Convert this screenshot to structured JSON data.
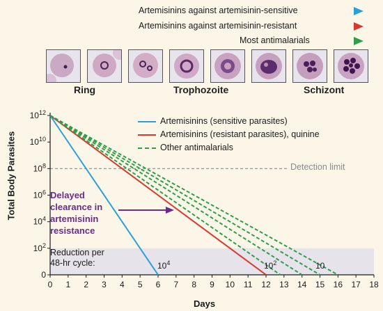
{
  "top_arrows": [
    {
      "label": "Artemisinins against artemisinin-sensitive",
      "color": "#2b9fd8"
    },
    {
      "label": "Artemisinins against artemisinin-resistant",
      "color": "#d63a2f"
    },
    {
      "label": "Most antimalarials",
      "color": "#2e9e48"
    }
  ],
  "stage_labels": [
    "Ring",
    "Trophozoite",
    "Schizont"
  ],
  "chart_data": {
    "type": "line",
    "xlabel": "Days",
    "ylabel": "Total Body Parasites",
    "xlim": [
      0,
      18
    ],
    "x_ticks": [
      0,
      1,
      2,
      3,
      4,
      5,
      6,
      7,
      8,
      9,
      10,
      11,
      12,
      13,
      14,
      15,
      16,
      17,
      18
    ],
    "y_scale": "log",
    "y_ticks": [
      "0",
      "10^2",
      "10^4",
      "10^6",
      "10^8",
      "10^10",
      "10^12"
    ],
    "series": [
      {
        "name": "Artemisinins (sensitive parasites)",
        "color": "#2b9fd8",
        "style": "solid",
        "x": [
          0,
          6
        ],
        "y": [
          1000000000000.0,
          1
        ]
      },
      {
        "name": "Artemisinins (resistant parasites), quinine",
        "color": "#d63a2f",
        "style": "solid",
        "x": [
          0,
          12
        ],
        "y": [
          1000000000000.0,
          1
        ]
      },
      {
        "name": "Other antimalarials",
        "color": "#2e9e48",
        "style": "dashed",
        "x": [
          0,
          12.8
        ],
        "y": [
          1000000000000.0,
          1
        ]
      },
      {
        "name": "",
        "color": "#2e9e48",
        "style": "dashed",
        "x": [
          0,
          14
        ],
        "y": [
          1000000000000.0,
          1
        ]
      },
      {
        "name": "",
        "color": "#2e9e48",
        "style": "dashed",
        "x": [
          0,
          15
        ],
        "y": [
          1000000000000.0,
          1
        ]
      },
      {
        "name": "",
        "color": "#2e9e48",
        "style": "dashed",
        "x": [
          0,
          16
        ],
        "y": [
          1000000000000.0,
          1
        ]
      }
    ],
    "detection_limit": {
      "label": "Detection limit",
      "y": 100000000.0
    },
    "annotations": {
      "delayed": [
        "Delayed",
        "clearance in",
        "artemisinin",
        "resistance"
      ],
      "reduction": [
        "Reduction per",
        "48-hr cycle:"
      ],
      "reduction_values": [
        "10^4",
        "10^2",
        "10"
      ]
    }
  }
}
